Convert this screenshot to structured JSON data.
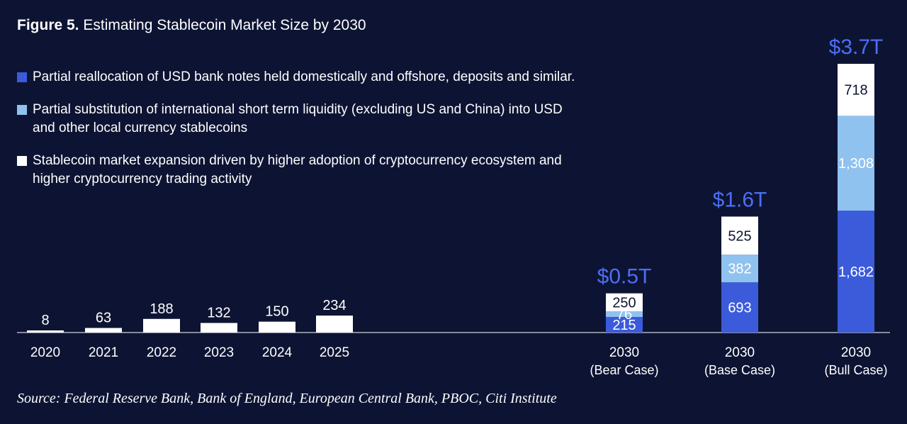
{
  "title_bold": "Figure 5.",
  "title_rest": " Estimating Stablecoin Market Size by 2030",
  "legend": [
    {
      "label": "Partial reallocation of USD bank notes held domestically and offshore, deposits and similar.",
      "color": "#3b5bdb"
    },
    {
      "label": "Partial substitution of international short term liquidity (excluding US and China) into USD and other local currency stablecoins",
      "color": "#90c2f0"
    },
    {
      "label": "Stablecoin market expansion driven by higher adoption of cryptocurrency ecosystem and higher cryptocurrency trading activity",
      "color": "#ffffff"
    }
  ],
  "source": "Source: Federal Reserve Bank, Bank of England, European Central Bank, PBOC, Citi Institute",
  "chart_data": {
    "type": "bar",
    "historical": {
      "categories": [
        "2020",
        "2021",
        "2022",
        "2023",
        "2024",
        "2025"
      ],
      "values": [
        8,
        63,
        188,
        132,
        150,
        234
      ],
      "labels": [
        "8",
        "63",
        "188",
        "132",
        "150",
        "234"
      ]
    },
    "projections": [
      {
        "line1": "2030",
        "line2": "(Bear Case)",
        "total_label": "$0.5T",
        "values": [
          215,
          76,
          250
        ],
        "labels": [
          "215",
          "76",
          "250"
        ]
      },
      {
        "line1": "2030",
        "line2": "(Base Case)",
        "total_label": "$1.6T",
        "values": [
          693,
          382,
          525
        ],
        "labels": [
          "693",
          "382",
          "525"
        ]
      },
      {
        "line1": "2030",
        "line2": "(Bull Case)",
        "total_label": "$3.7T",
        "values": [
          1682,
          1308,
          718
        ],
        "labels": [
          "1,682",
          "1,308",
          "718"
        ]
      }
    ],
    "series_colors": [
      "#3b5bdb",
      "#90c2f0",
      "#ffffff"
    ],
    "total_label_color": "#4c6ef5",
    "ylim": [
      0,
      3708
    ]
  }
}
